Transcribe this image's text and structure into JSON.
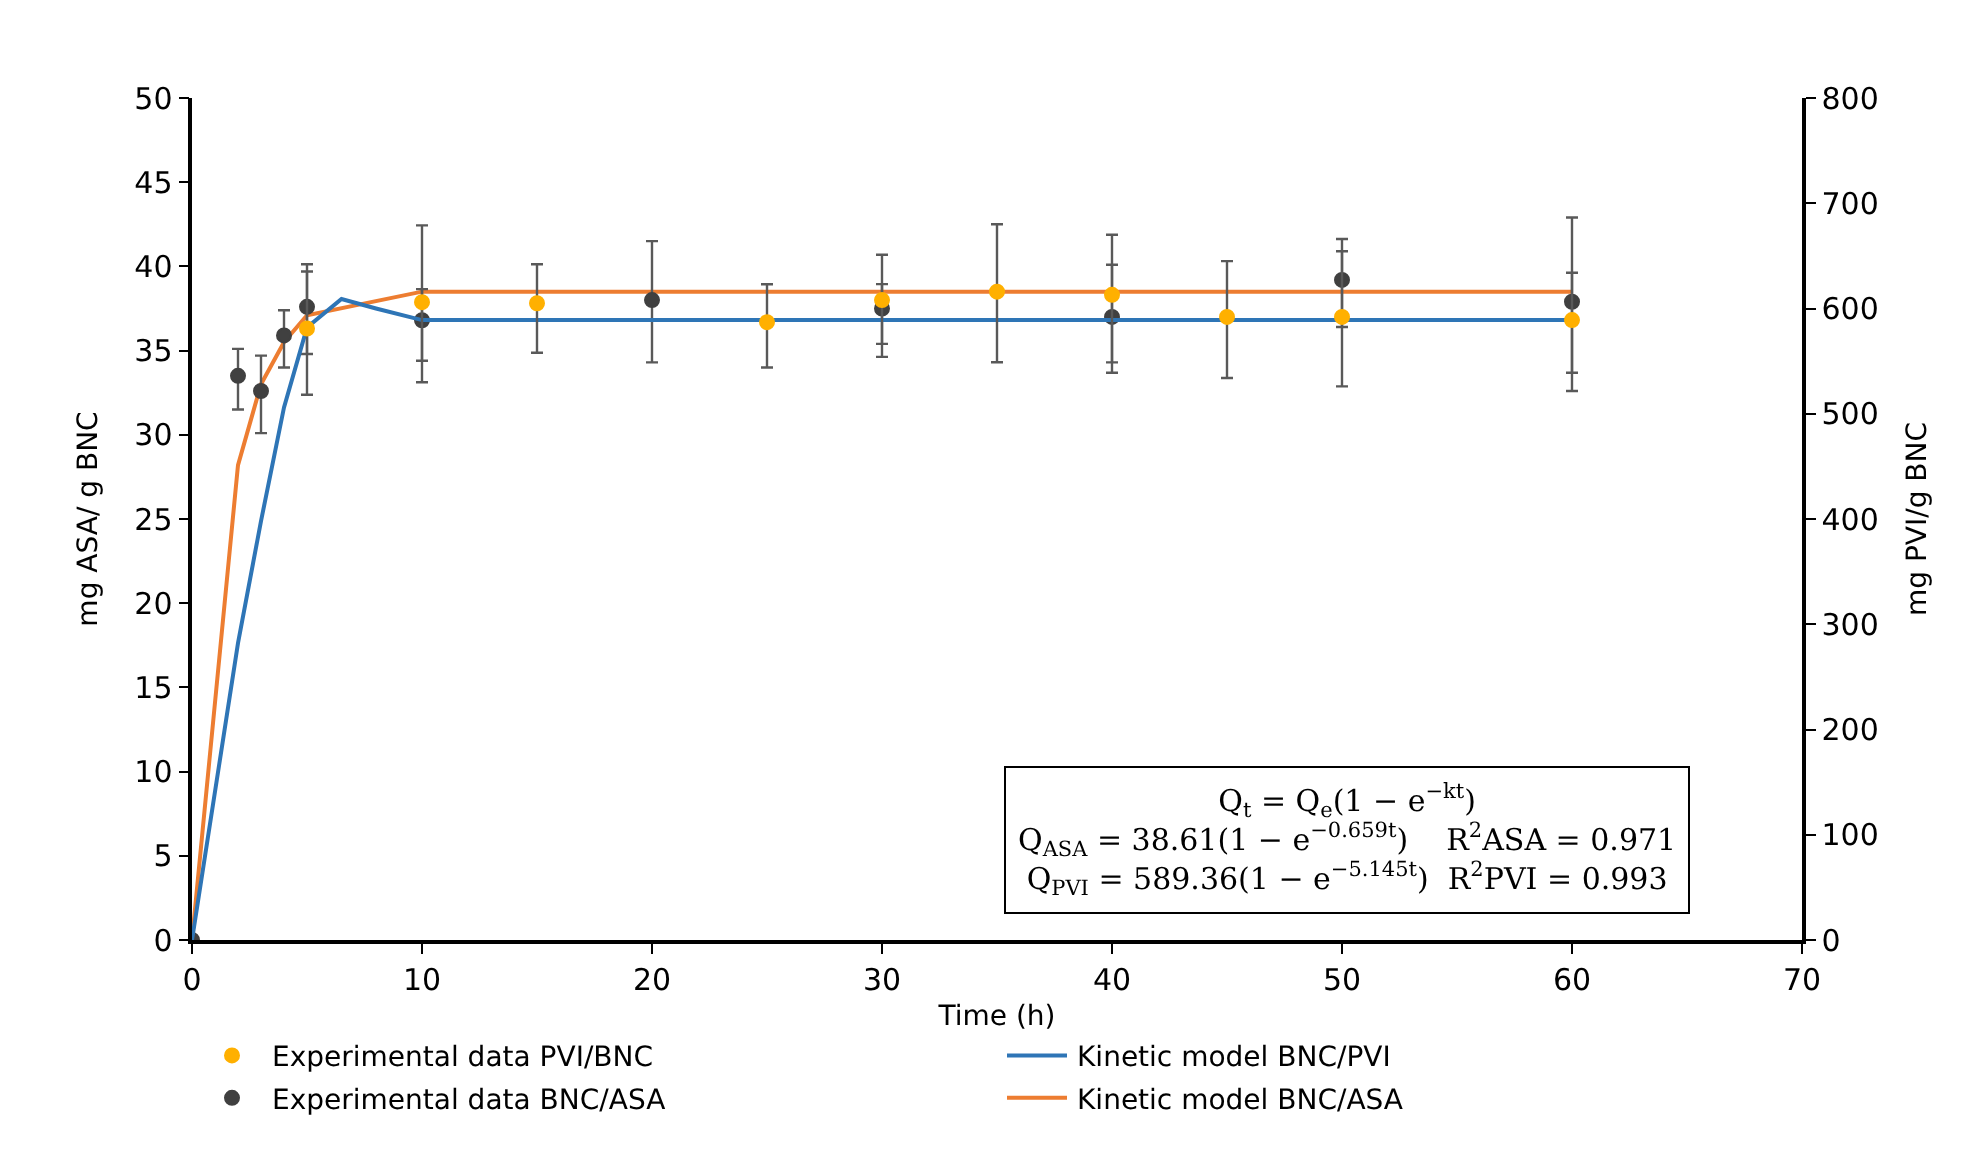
{
  "chart_data": {
    "type": "scatter",
    "xlabel": "Time (h)",
    "ylabel": "mg ASA/ g BNC",
    "y2label": "mg PVI/g BNC",
    "xlim": [
      0,
      70
    ],
    "xticks": [
      0,
      10,
      20,
      30,
      40,
      50,
      60,
      70
    ],
    "ylim": [
      0,
      50
    ],
    "yticks": [
      0,
      5,
      10,
      15,
      20,
      25,
      30,
      35,
      40,
      45,
      50
    ],
    "y2lim": [
      0,
      800
    ],
    "y2ticks": [
      0,
      100,
      200,
      300,
      400,
      500,
      600,
      700,
      800
    ],
    "legend": "bottom",
    "marker": "circle",
    "series": [
      {
        "name": "Experimental data PVI/BNC",
        "axis": "y2",
        "color": "#ffb000",
        "x": [
          5,
          10,
          15,
          25,
          30,
          35,
          40,
          45,
          50,
          60
        ],
        "values": [
          581,
          606,
          605,
          587,
          608,
          616,
          613,
          592,
          592,
          589
        ],
        "errors": [
          [
            518,
            642
          ],
          [
            530,
            679
          ],
          [
            558,
            642
          ],
          [
            544,
            623
          ],
          [
            554,
            651
          ],
          [
            549,
            680
          ],
          [
            539,
            670
          ],
          [
            534,
            645
          ],
          [
            526,
            666
          ],
          [
            539,
            634
          ]
        ]
      },
      {
        "name": "Kinetic model BNC/PVI",
        "type": "line",
        "axis": "y2",
        "color": "#2e75b6",
        "line_style": "solid",
        "marker": "none",
        "x": [
          0,
          2,
          3,
          4,
          5,
          6.5,
          8,
          10,
          20,
          30,
          40,
          50,
          60
        ],
        "values": [
          0,
          282,
          398,
          506,
          582,
          609,
          600,
          589,
          589,
          589,
          589,
          589,
          589
        ]
      },
      {
        "name": "Experimental data BNC/ASA",
        "color": "#404040",
        "x": [
          0,
          2,
          3,
          4,
          5,
          10,
          20,
          30,
          40,
          50,
          60
        ],
        "values": [
          0,
          33.5,
          32.6,
          35.9,
          37.6,
          36.8,
          38.0,
          37.5,
          37.0,
          39.2,
          37.9
        ],
        "errors": [
          null,
          [
            31.5,
            35.1
          ],
          [
            30.1,
            34.7
          ],
          [
            34.0,
            37.4
          ],
          [
            34.8,
            39.7
          ],
          [
            34.4,
            38.65
          ],
          [
            34.3,
            41.5
          ],
          [
            35.4,
            38.95
          ],
          [
            34.3,
            40.1
          ],
          [
            36.4,
            40.9
          ],
          [
            32.6,
            42.9
          ]
        ]
      },
      {
        "name": "Kinetic model BNC/ASA",
        "type": "line",
        "color": "#ed7d31",
        "line_style": "solid",
        "marker": "none",
        "x": [
          0,
          2,
          3,
          4,
          5,
          10,
          20,
          30,
          40,
          50,
          60
        ],
        "values": [
          0,
          28.2,
          33.0,
          35.5,
          37.1,
          38.5,
          38.5,
          38.5,
          38.5,
          38.5,
          38.5
        ]
      }
    ],
    "annotations": [
      "Q$_{t}$ = Q$_{e}$(1 − e$^{−kt}$)",
      "Q$_{ASA}$ = 38.61(1 − e$^{−0.659t}$)    R$^{2}$ASA = 0.971",
      "Q$_{PVI}$ = 589.36(1 − e$^{−5.145t}$)  R$^{2}$PVI = 0.993"
    ]
  }
}
